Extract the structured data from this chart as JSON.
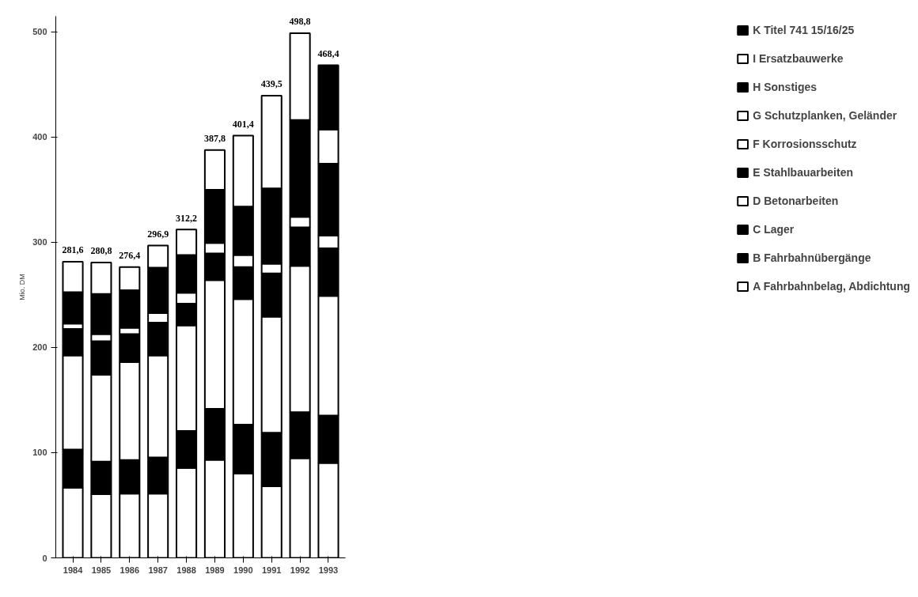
{
  "chart_data": {
    "type": "bar",
    "stacked": true,
    "ylabel": "Mio. DM",
    "categories": [
      "1984",
      "1985",
      "1986",
      "1987",
      "1988",
      "1989",
      "1990",
      "1991",
      "1992",
      "1993"
    ],
    "series": [
      {
        "name": "A Fahrbahnbelag, Abdichtung",
        "color": "#ffffff",
        "values": [
          66.7,
          60.6,
          61.0,
          61.0,
          85.5,
          93.3,
          80.3,
          68.0,
          94.8,
          90.2
        ]
      },
      {
        "name": "B Fahrbahnübergänge",
        "color": "#000000",
        "values": [
          36.3,
          30.9,
          32.0,
          34.5,
          35.1,
          48.5,
          46.4,
          50.9,
          43.8,
          45.1
        ]
      },
      {
        "name": "C Lager",
        "color": "#000000",
        "values": [
          null,
          null,
          null,
          null,
          null,
          null,
          null,
          null,
          null,
          null
        ]
      },
      {
        "name": "D Betonarbeiten",
        "color": "#ffffff",
        "values": [
          89.4,
          82.5,
          93.0,
          96.9,
          100.4,
          122.2,
          119.3,
          110.4,
          139.1,
          113.7
        ]
      },
      {
        "name": "E Stahlbauarbeiten",
        "color": "#000000",
        "values": [
          25.2,
          32.0,
          26.7,
          31.2,
          20.8,
          25.4,
          30.4,
          41.2,
          36.6,
          45.4
        ]
      },
      {
        "name": "F Korrosionsschutz",
        "color": "#ffffff",
        "values": [
          5.1,
          6.7,
          6.1,
          9.1,
          10.2,
          10.0,
          11.5,
          9.2,
          9.9,
          11.9
        ]
      },
      {
        "name": "G Schutzplanken, Geländer",
        "color": "#ffffff",
        "values": [
          null,
          null,
          null,
          null,
          null,
          null,
          null,
          null,
          null,
          null
        ]
      },
      {
        "name": "H Sonstiges",
        "color": "#000000",
        "values": [
          30.0,
          38.3,
          35.7,
          43.3,
          35.9,
          50.6,
          46.1,
          71.5,
          92.2,
          68.5
        ]
      },
      {
        "name": "I Ersatzbauwerke",
        "color": "#ffffff",
        "values": [
          28.9,
          29.8,
          21.9,
          20.9,
          24.3,
          37.8,
          67.4,
          88.3,
          82.4,
          32.4
        ]
      },
      {
        "name": "K Titel 741 15/16/25",
        "color": "#000000",
        "values": [
          null,
          null,
          null,
          null,
          null,
          null,
          null,
          null,
          null,
          61.2
        ]
      }
    ],
    "totals": [
      "281,6",
      "280,8",
      "276,4",
      "296,9",
      "312,2",
      "387,8",
      "401,4",
      "439,5",
      "498,8",
      "468,4"
    ],
    "ylim": [
      0,
      515
    ],
    "yticks": [
      0,
      100,
      200,
      300,
      400,
      500
    ],
    "grid": false,
    "legend": "right"
  }
}
